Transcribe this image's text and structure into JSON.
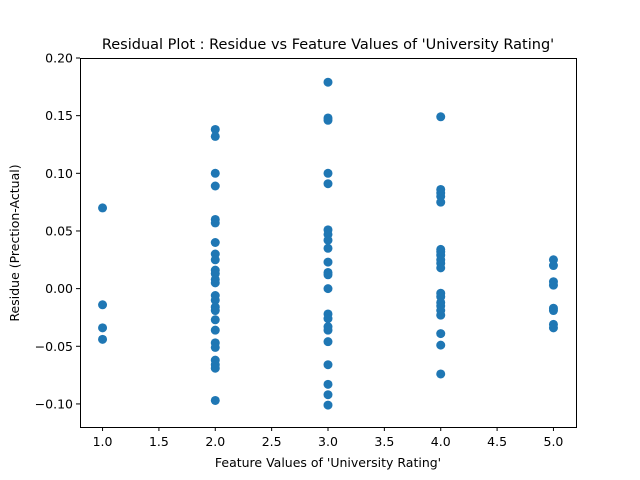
{
  "chart_data": {
    "type": "scatter",
    "title": "Residual Plot : Residue vs Feature Values of 'University Rating'",
    "xlabel": "Feature Values of 'University Rating'",
    "ylabel": "Residue (Prection-Actual)",
    "xlim": [
      0.8,
      5.2
    ],
    "ylim": [
      -0.12,
      0.2
    ],
    "xticks": [
      1.0,
      1.5,
      2.0,
      2.5,
      3.0,
      3.5,
      4.0,
      4.5,
      5.0
    ],
    "xtick_labels": [
      "1.0",
      "1.5",
      "2.0",
      "2.5",
      "3.0",
      "3.5",
      "4.0",
      "4.5",
      "5.0"
    ],
    "yticks": [
      -0.1,
      -0.05,
      0.0,
      0.05,
      0.1,
      0.15,
      0.2
    ],
    "ytick_labels": [
      "−0.10",
      "−0.05",
      "0.00",
      "0.05",
      "0.10",
      "0.15",
      "0.20"
    ],
    "grid": false,
    "point_color": "#1f77b4",
    "series": [
      {
        "points": [
          {
            "x": 1,
            "y": 0.07
          },
          {
            "x": 1,
            "y": -0.014
          },
          {
            "x": 1,
            "y": -0.034
          },
          {
            "x": 1,
            "y": -0.044
          },
          {
            "x": 2,
            "y": 0.138
          },
          {
            "x": 2,
            "y": 0.132
          },
          {
            "x": 2,
            "y": 0.1
          },
          {
            "x": 2,
            "y": 0.089
          },
          {
            "x": 2,
            "y": 0.06
          },
          {
            "x": 2,
            "y": 0.057
          },
          {
            "x": 2,
            "y": 0.04
          },
          {
            "x": 2,
            "y": 0.03
          },
          {
            "x": 2,
            "y": 0.025
          },
          {
            "x": 2,
            "y": 0.016
          },
          {
            "x": 2,
            "y": 0.013
          },
          {
            "x": 2,
            "y": 0.008
          },
          {
            "x": 2,
            "y": 0.005
          },
          {
            "x": 2,
            "y": -0.006
          },
          {
            "x": 2,
            "y": -0.01
          },
          {
            "x": 2,
            "y": -0.016
          },
          {
            "x": 2,
            "y": -0.019
          },
          {
            "x": 2,
            "y": -0.027
          },
          {
            "x": 2,
            "y": -0.036
          },
          {
            "x": 2,
            "y": -0.047
          },
          {
            "x": 2,
            "y": -0.051
          },
          {
            "x": 2,
            "y": -0.062
          },
          {
            "x": 2,
            "y": -0.066
          },
          {
            "x": 2,
            "y": -0.069
          },
          {
            "x": 2,
            "y": -0.097
          },
          {
            "x": 3,
            "y": 0.179
          },
          {
            "x": 3,
            "y": 0.148
          },
          {
            "x": 3,
            "y": 0.146
          },
          {
            "x": 3,
            "y": 0.1
          },
          {
            "x": 3,
            "y": 0.091
          },
          {
            "x": 3,
            "y": 0.051
          },
          {
            "x": 3,
            "y": 0.047
          },
          {
            "x": 3,
            "y": 0.042
          },
          {
            "x": 3,
            "y": 0.035
          },
          {
            "x": 3,
            "y": 0.023
          },
          {
            "x": 3,
            "y": 0.014
          },
          {
            "x": 3,
            "y": 0.012
          },
          {
            "x": 3,
            "y": 0.0
          },
          {
            "x": 3,
            "y": -0.022
          },
          {
            "x": 3,
            "y": -0.026
          },
          {
            "x": 3,
            "y": -0.033
          },
          {
            "x": 3,
            "y": -0.036
          },
          {
            "x": 3,
            "y": -0.046
          },
          {
            "x": 3,
            "y": -0.066
          },
          {
            "x": 3,
            "y": -0.083
          },
          {
            "x": 3,
            "y": -0.092
          },
          {
            "x": 3,
            "y": -0.101
          },
          {
            "x": 4,
            "y": 0.149
          },
          {
            "x": 4,
            "y": 0.086
          },
          {
            "x": 4,
            "y": 0.083
          },
          {
            "x": 4,
            "y": 0.08
          },
          {
            "x": 4,
            "y": 0.075
          },
          {
            "x": 4,
            "y": 0.034
          },
          {
            "x": 4,
            "y": 0.032
          },
          {
            "x": 4,
            "y": 0.029
          },
          {
            "x": 4,
            "y": 0.025
          },
          {
            "x": 4,
            "y": 0.022
          },
          {
            "x": 4,
            "y": 0.018
          },
          {
            "x": 4,
            "y": -0.004
          },
          {
            "x": 4,
            "y": -0.007
          },
          {
            "x": 4,
            "y": -0.012
          },
          {
            "x": 4,
            "y": -0.015
          },
          {
            "x": 4,
            "y": -0.019
          },
          {
            "x": 4,
            "y": -0.023
          },
          {
            "x": 4,
            "y": -0.039
          },
          {
            "x": 4,
            "y": -0.049
          },
          {
            "x": 4,
            "y": -0.074
          },
          {
            "x": 5,
            "y": 0.025
          },
          {
            "x": 5,
            "y": 0.02
          },
          {
            "x": 5,
            "y": 0.006
          },
          {
            "x": 5,
            "y": 0.003
          },
          {
            "x": 5,
            "y": -0.017
          },
          {
            "x": 5,
            "y": -0.019
          },
          {
            "x": 5,
            "y": -0.031
          },
          {
            "x": 5,
            "y": -0.034
          }
        ]
      }
    ]
  }
}
